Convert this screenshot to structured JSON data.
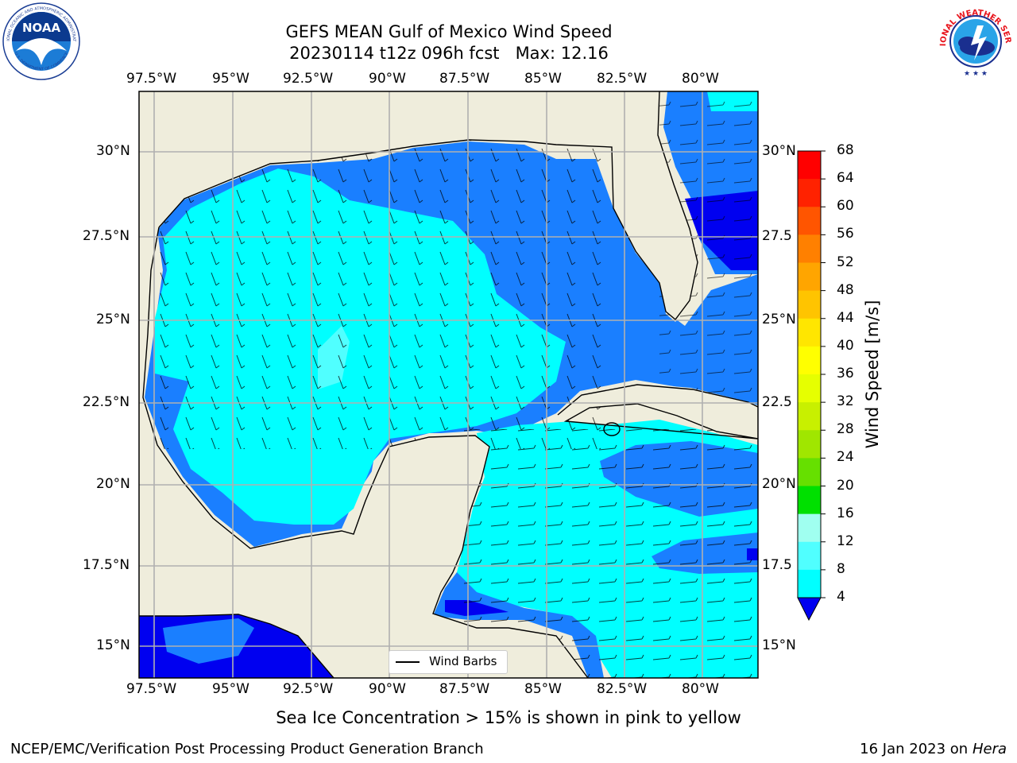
{
  "title": {
    "line1": "GEFS MEAN Gulf of Mexico Wind Speed",
    "line2": "20230114 t12z 096h fcst   Max: 12.16"
  },
  "axes": {
    "lon_labels": [
      "97.5°W",
      "95°W",
      "92.5°W",
      "90°W",
      "87.5°W",
      "85°W",
      "82.5°W",
      "80°W"
    ],
    "lat_labels_left": [
      "30°N",
      "27.5°N",
      "25°N",
      "22.5°N",
      "20°N",
      "17.5°N",
      "15°N"
    ],
    "lat_labels_right": [
      "30°N",
      "27.5",
      "25°N",
      "22.5",
      "20°N",
      "17.5",
      "15°N"
    ]
  },
  "colorbar": {
    "label": "Wind Speed [m/s]",
    "ticks": [
      "68",
      "64",
      "60",
      "56",
      "52",
      "48",
      "44",
      "40",
      "36",
      "32",
      "28",
      "24",
      "20",
      "16",
      "12",
      "8",
      "4"
    ],
    "colors": [
      "#ff0000",
      "#ff2200",
      "#ff5500",
      "#ff8000",
      "#ffa500",
      "#ffc400",
      "#ffe600",
      "#ffff00",
      "#e6ff00",
      "#c8f000",
      "#a0e600",
      "#66e000",
      "#00e000",
      "#50f080",
      "#a0fff0",
      "#50ffff",
      "#00ffff",
      "#1a7fff",
      "#0000f0"
    ]
  },
  "legend": {
    "label": "Wind Barbs"
  },
  "footer": {
    "note": "Sea Ice Concentration > 15% is shown in pink to yellow",
    "org": "NCEP/EMC/Verification Post Processing Product Generation Branch",
    "date": "16 Jan 2023 on",
    "machine": "Hera"
  },
  "logos": {
    "noaa_text": "NOAA",
    "noaa_ring": "NATIONAL OCEANIC AND ATMOSPHERIC ADMINISTRATION",
    "noaa_ring_bottom": "U.S. DEPARTMENT OF COMMERCE",
    "nws_ring": "NATIONAL WEATHER SERVICE"
  },
  "colors": {
    "land": "#efeddc",
    "wind_4_8": "#1a7fff",
    "wind_8_12": "#00ffff",
    "wind_12_16": "#50ffff",
    "wind_lt4": "#0000f0",
    "grid": "#b0b0b0"
  }
}
